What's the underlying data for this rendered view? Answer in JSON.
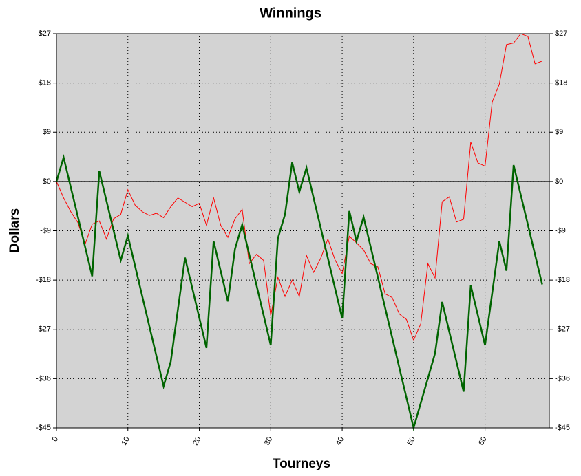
{
  "chart_data": {
    "type": "line",
    "title": "Winnings",
    "x_label": "Tourneys",
    "y_label": "Dollars",
    "xlim": [
      0,
      69
    ],
    "xticks": [
      0,
      10,
      20,
      30,
      40,
      50,
      60
    ],
    "ylim": [
      -45,
      27
    ],
    "yticks": [
      {
        "value": -45,
        "label": "-$45"
      },
      {
        "value": -36,
        "label": "-$36"
      },
      {
        "value": -27,
        "label": "-$27"
      },
      {
        "value": -18,
        "label": "-$18"
      },
      {
        "value": -9,
        "label": "-$9"
      },
      {
        "value": 0,
        "label": "$0"
      },
      {
        "value": 9,
        "label": "$9"
      },
      {
        "value": 18,
        "label": "$18"
      },
      {
        "value": 27,
        "label": "$27"
      }
    ],
    "grid": true,
    "series": [
      {
        "color": "#ff0000",
        "width": 1,
        "x": [
          0,
          1,
          2,
          3,
          4,
          5,
          6,
          7,
          8,
          9,
          10,
          11,
          12,
          13,
          14,
          15,
          16,
          17,
          18,
          19,
          20,
          21,
          22,
          23,
          24,
          25,
          26,
          27,
          28,
          29,
          30,
          31,
          32,
          33,
          34,
          35,
          36,
          37,
          38,
          39,
          40,
          41,
          42,
          43,
          44,
          45,
          46,
          47,
          48,
          49,
          50,
          51,
          52,
          53,
          54,
          55,
          56,
          57,
          58,
          59,
          60,
          61,
          62,
          63,
          64,
          65,
          66,
          67,
          68
        ],
        "values": [
          0,
          -3,
          -5.5,
          -7.5,
          -11.5,
          -7.8,
          -7.2,
          -10.5,
          -6.8,
          -6,
          -1.5,
          -4.3,
          -5.5,
          -6.2,
          -5.8,
          -6.6,
          -4.6,
          -3,
          -3.8,
          -4.6,
          -4,
          -8,
          -3,
          -8,
          -10.2,
          -6.8,
          -5.1,
          -15,
          -13.3,
          -14.4,
          -24.5,
          -17.5,
          -21,
          -18,
          -21,
          -13.5,
          -16.6,
          -14,
          -10.5,
          -14.3,
          -16.8,
          -10,
          -11.2,
          -12.5,
          -15,
          -15.6,
          -20.5,
          -21.2,
          -24.2,
          -25.2,
          -29,
          -26,
          -15,
          -17.6,
          -3.7,
          -2.8,
          -7.4,
          -6.9,
          7.2,
          3.4,
          2.8,
          14.5,
          17.8,
          25,
          25.3,
          27,
          26.5,
          21.5,
          22
        ]
      },
      {
        "color": "#006400",
        "width": 2.5,
        "x": [
          0,
          1,
          5,
          6,
          9,
          10,
          15,
          16,
          18,
          21,
          22,
          24,
          25,
          26,
          30,
          31,
          32,
          33,
          34,
          35,
          40,
          41,
          42,
          43,
          50,
          53,
          54,
          57,
          58,
          60,
          62,
          63,
          64,
          68
        ],
        "values": [
          0,
          4.4,
          -17.3,
          1.9,
          -14.4,
          -9.9,
          -37.4,
          -32.9,
          -13.9,
          -30.4,
          -10.9,
          -21.9,
          -12.3,
          -7.9,
          -29.9,
          -10.4,
          -6,
          3.5,
          -1.9,
          2.5,
          -25,
          -5.4,
          -10.9,
          -6.5,
          -45,
          -31.4,
          -22,
          -38.4,
          -19,
          -29.9,
          -10.9,
          -16.3,
          3,
          -18.8
        ]
      }
    ]
  }
}
